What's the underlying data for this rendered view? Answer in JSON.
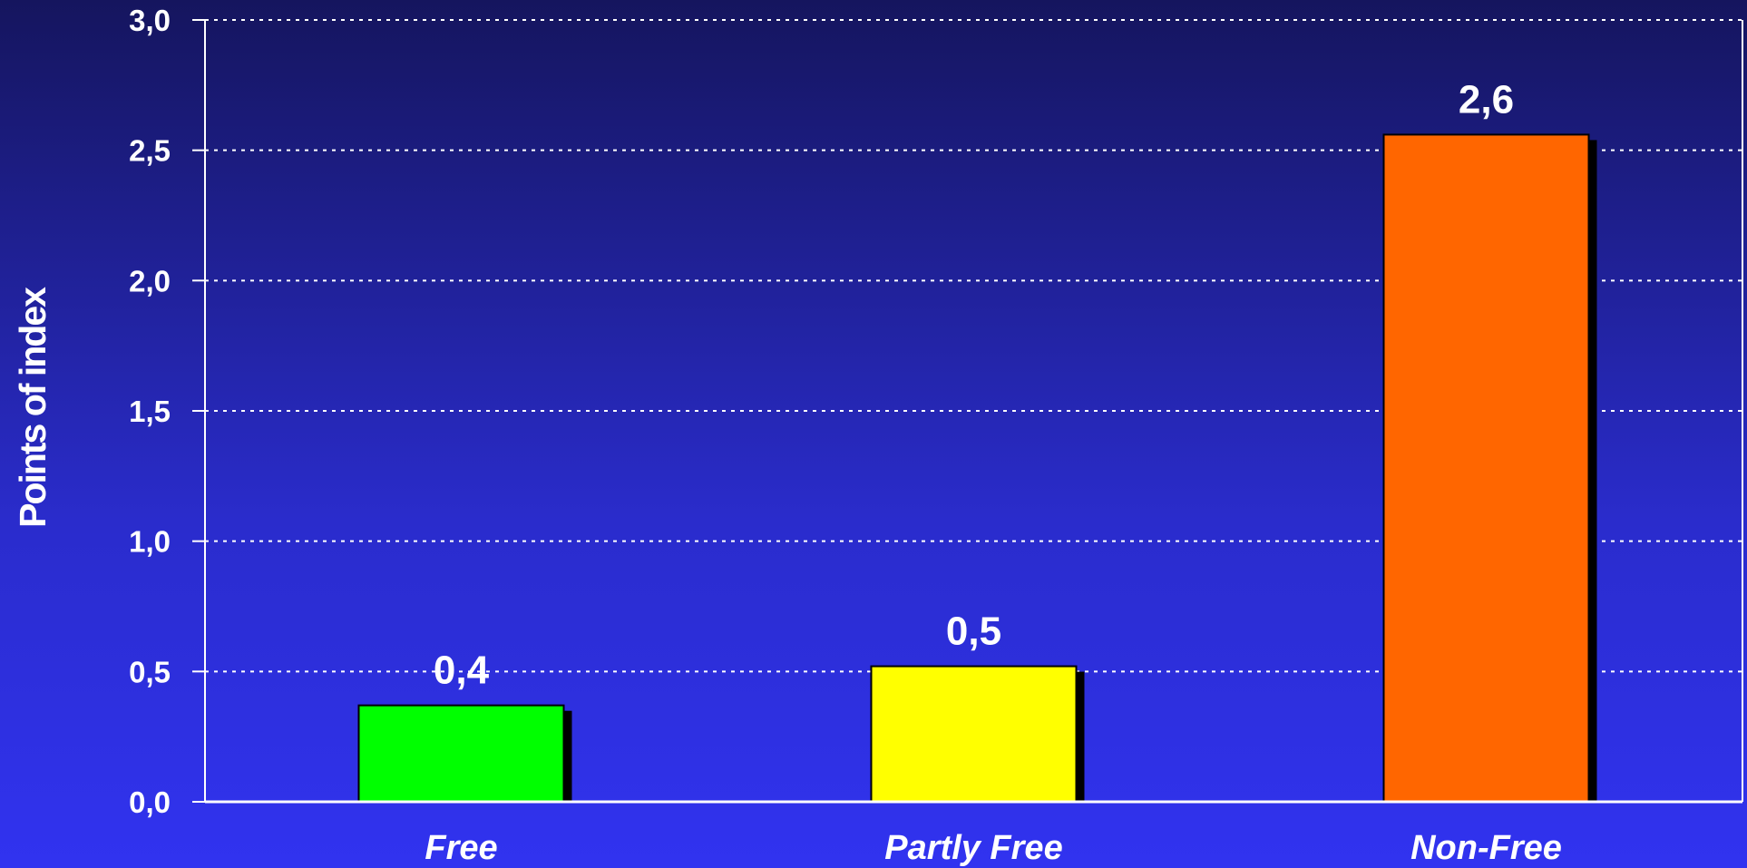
{
  "chart_data": {
    "type": "bar",
    "categories": [
      "Free",
      "Partly Free",
      "Non-Free"
    ],
    "values": [
      0.37,
      0.52,
      2.56
    ],
    "data_labels": [
      "0,4",
      "0,5",
      "2,6"
    ],
    "bar_colors": [
      "#00ff00",
      "#ffff00",
      "#ff6600"
    ],
    "title": "",
    "xlabel": "",
    "ylabel": "Points of index",
    "ylim": [
      0,
      3
    ],
    "yticks": [
      0,
      0.5,
      1,
      1.5,
      2,
      2.5,
      3
    ],
    "ytick_labels": [
      "0,0",
      "0,5",
      "1,0",
      "1,5",
      "2,0",
      "2,5",
      "3,0"
    ],
    "grid": true,
    "grid_style": "dotted",
    "legend": "none"
  }
}
